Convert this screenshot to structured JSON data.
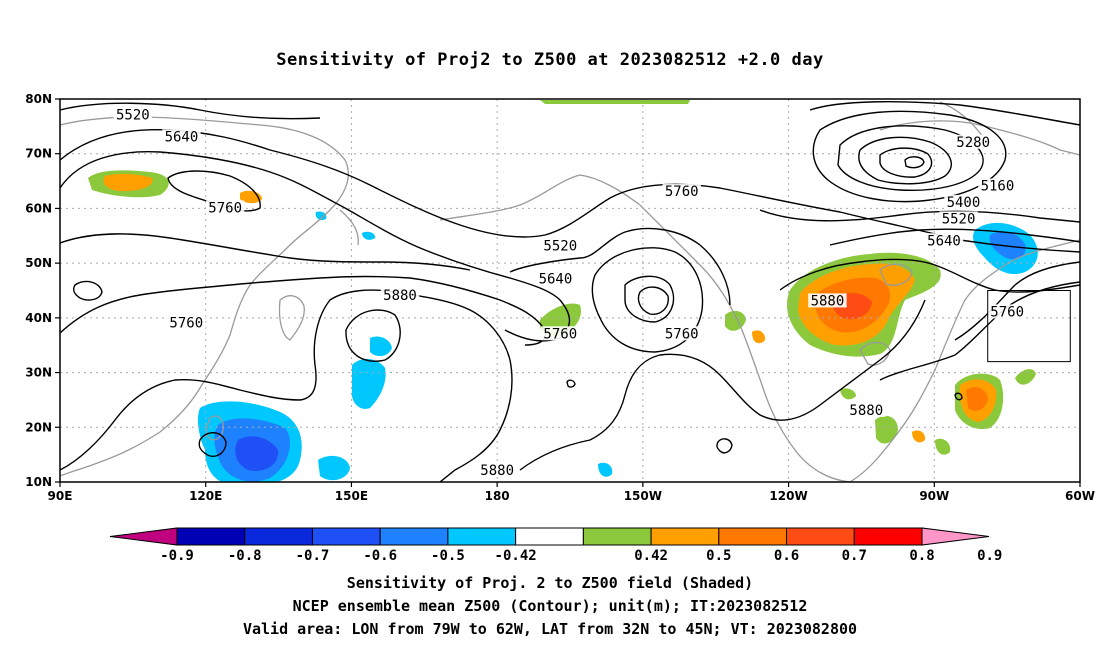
{
  "title": "Sensitivity of Proj2 to Z500 at 2023082512 +2.0 day",
  "map": {
    "lon_range": [
      90,
      300
    ],
    "lat_range": [
      10,
      80
    ],
    "lon_ticks": [
      {
        "lon": 90,
        "label": "90E"
      },
      {
        "lon": 120,
        "label": "120E"
      },
      {
        "lon": 150,
        "label": "150E"
      },
      {
        "lon": 180,
        "label": "180"
      },
      {
        "lon": 210,
        "label": "150W"
      },
      {
        "lon": 240,
        "label": "120W"
      },
      {
        "lon": 270,
        "label": "90W"
      },
      {
        "lon": 300,
        "label": "60W"
      }
    ],
    "lat_ticks": [
      {
        "lat": 10,
        "label": "10N"
      },
      {
        "lat": 20,
        "label": "20N"
      },
      {
        "lat": 30,
        "label": "30N"
      },
      {
        "lat": 40,
        "label": "40N"
      },
      {
        "lat": 50,
        "label": "50N"
      },
      {
        "lat": 60,
        "label": "60N"
      },
      {
        "lat": 70,
        "label": "70N"
      },
      {
        "lat": 80,
        "label": "80N"
      }
    ],
    "gridlines": "dotted",
    "contour_labels": [
      {
        "text": "5520",
        "lon": 105,
        "lat": 77
      },
      {
        "text": "5640",
        "lon": 115,
        "lat": 73
      },
      {
        "text": "5760",
        "lon": 124,
        "lat": 60
      },
      {
        "text": "5760",
        "lon": 116,
        "lat": 39
      },
      {
        "text": "5880",
        "lon": 160,
        "lat": 44
      },
      {
        "text": "5520",
        "lon": 193,
        "lat": 53
      },
      {
        "text": "5640",
        "lon": 192,
        "lat": 47
      },
      {
        "text": "5760",
        "lon": 193,
        "lat": 37
      },
      {
        "text": "5760",
        "lon": 218,
        "lat": 63
      },
      {
        "text": "5760",
        "lon": 218,
        "lat": 37
      },
      {
        "text": "5880",
        "lon": 248,
        "lat": 43
      },
      {
        "text": "5880",
        "lon": 256,
        "lat": 23
      },
      {
        "text": "5880",
        "lon": 180,
        "lat": 12
      },
      {
        "text": "5280",
        "lon": 278,
        "lat": 72
      },
      {
        "text": "5160",
        "lon": 283,
        "lat": 64
      },
      {
        "text": "5400",
        "lon": 276,
        "lat": 61
      },
      {
        "text": "5520",
        "lon": 275,
        "lat": 58
      },
      {
        "text": "5640",
        "lon": 272,
        "lat": 54
      },
      {
        "text": "5760",
        "lon": 285,
        "lat": 41
      }
    ],
    "valid_box": {
      "lon_min": 281,
      "lon_max": 298,
      "lat_min": 32,
      "lat_max": 45
    },
    "colors": {
      "neg_09": "#c0007f",
      "neg_08": "#0000b4",
      "neg_07": "#0a28dc",
      "neg_06": "#1e50f5",
      "neg_05": "#1e82ff",
      "neg_042": "#00c8ff",
      "zero": "#ffffff",
      "pos_042": "#8cc83c",
      "pos_05": "#ffa000",
      "pos_06": "#ff7800",
      "pos_07": "#ff4b14",
      "pos_08": "#ff0000",
      "pos_09": "#ff96c8"
    }
  },
  "colorbar": {
    "labels": [
      "-0.9",
      "-0.8",
      "-0.7",
      "-0.6",
      "-0.5",
      "-0.42",
      "0.42",
      "0.5",
      "0.6",
      "0.7",
      "0.8",
      "0.9"
    ],
    "colors": [
      "#0000b4",
      "#0a28dc",
      "#1e50f5",
      "#1e82ff",
      "#00c8ff",
      "#ffffff",
      "#8cc83c",
      "#ffa000",
      "#ff7800",
      "#ff4b14",
      "#ff0000"
    ],
    "left_extend_color": "#c0007f",
    "right_extend_color": "#ff96c8"
  },
  "captions": {
    "line1": "Sensitivity of Proj. 2 to Z500 field (Shaded)",
    "line2": "NCEP ensemble mean Z500 (Contour); unit(m); IT:2023082512",
    "line3": "Valid area: LON from 79W to 62W, LAT from 32N to 45N; VT: 2023082800"
  }
}
